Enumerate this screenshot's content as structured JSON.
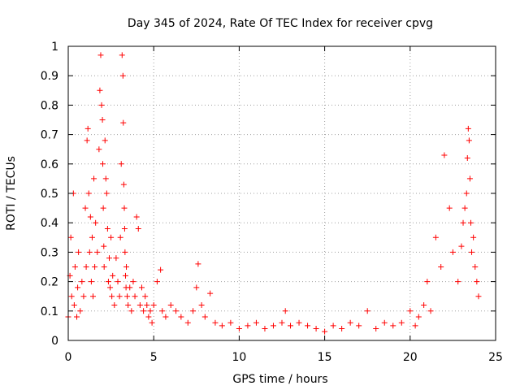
{
  "chart_data": {
    "type": "scatter",
    "title": "Day 345 of 2024, Rate Of TEC Index for receiver cpvg",
    "xlabel": "GPS time / hours",
    "ylabel": "ROTI / TECUs",
    "xlim": [
      0,
      25
    ],
    "ylim": [
      0,
      1
    ],
    "xticks": [
      0,
      5,
      10,
      15,
      20,
      25
    ],
    "yticks": [
      0,
      0.1,
      0.2,
      0.3,
      0.4,
      0.5,
      0.6,
      0.7,
      0.8,
      0.9,
      1
    ],
    "xtick_labels": [
      "0",
      "5",
      "10",
      "15",
      "20",
      "25"
    ],
    "ytick_labels": [
      "0",
      "0.1",
      "0.2",
      "0.3",
      "0.4",
      "0.5",
      "0.6",
      "0.7",
      "0.8",
      "0.9",
      "1"
    ],
    "grid": true,
    "marker": "+",
    "color": "#ff0000",
    "series": [
      {
        "name": "ROTI",
        "x": [
          0.0,
          0.1,
          0.15,
          0.2,
          0.3,
          0.35,
          0.4,
          0.5,
          0.55,
          0.6,
          0.7,
          0.8,
          0.9,
          1.0,
          1.05,
          1.1,
          1.15,
          1.2,
          1.25,
          1.3,
          1.35,
          1.4,
          1.45,
          1.5,
          1.55,
          1.6,
          1.7,
          1.8,
          1.85,
          1.9,
          1.95,
          2.0,
          2.02,
          2.05,
          2.08,
          2.1,
          2.15,
          2.2,
          2.25,
          2.3,
          2.35,
          2.4,
          2.45,
          2.5,
          2.55,
          2.6,
          2.7,
          2.8,
          2.9,
          3.0,
          3.05,
          3.1,
          3.15,
          3.2,
          3.22,
          3.25,
          3.28,
          3.3,
          3.32,
          3.35,
          3.38,
          3.4,
          3.45,
          3.5,
          3.6,
          3.7,
          3.8,
          3.9,
          4.0,
          4.1,
          4.2,
          4.3,
          4.4,
          4.5,
          4.6,
          4.7,
          4.8,
          4.9,
          5.0,
          5.2,
          5.4,
          5.5,
          5.7,
          6.0,
          6.3,
          6.6,
          7.0,
          7.3,
          7.5,
          7.6,
          7.8,
          8.0,
          8.3,
          8.6,
          9.0,
          9.5,
          10.0,
          10.5,
          11.0,
          11.5,
          12.0,
          12.5,
          12.7,
          13.0,
          13.5,
          14.0,
          14.5,
          15.0,
          15.5,
          16.0,
          16.5,
          17.0,
          17.5,
          18.0,
          18.5,
          19.0,
          19.5,
          20.0,
          20.3,
          20.5,
          20.8,
          21.0,
          21.2,
          21.5,
          21.8,
          22.0,
          22.3,
          22.5,
          22.8,
          23.0,
          23.1,
          23.2,
          23.3,
          23.35,
          23.4,
          23.45,
          23.5,
          23.55,
          23.6,
          23.7,
          23.8,
          23.9,
          24.0
        ],
        "y": [
          0.08,
          0.22,
          0.35,
          0.15,
          0.5,
          0.12,
          0.25,
          0.08,
          0.18,
          0.3,
          0.1,
          0.2,
          0.15,
          0.45,
          0.25,
          0.68,
          0.72,
          0.5,
          0.3,
          0.42,
          0.2,
          0.35,
          0.15,
          0.55,
          0.25,
          0.4,
          0.3,
          0.65,
          0.85,
          0.97,
          0.8,
          0.75,
          0.6,
          0.45,
          0.32,
          0.25,
          0.68,
          0.55,
          0.5,
          0.38,
          0.2,
          0.28,
          0.18,
          0.35,
          0.15,
          0.22,
          0.12,
          0.28,
          0.2,
          0.15,
          0.35,
          0.6,
          0.97,
          0.9,
          0.74,
          0.53,
          0.45,
          0.38,
          0.3,
          0.22,
          0.18,
          0.25,
          0.15,
          0.12,
          0.18,
          0.1,
          0.2,
          0.15,
          0.42,
          0.38,
          0.12,
          0.18,
          0.1,
          0.15,
          0.12,
          0.08,
          0.1,
          0.06,
          0.12,
          0.2,
          0.24,
          0.1,
          0.08,
          0.12,
          0.1,
          0.08,
          0.06,
          0.1,
          0.18,
          0.26,
          0.12,
          0.08,
          0.16,
          0.06,
          0.05,
          0.06,
          0.04,
          0.05,
          0.06,
          0.04,
          0.05,
          0.06,
          0.1,
          0.05,
          0.06,
          0.05,
          0.04,
          0.03,
          0.05,
          0.04,
          0.06,
          0.05,
          0.1,
          0.04,
          0.06,
          0.05,
          0.06,
          0.1,
          0.05,
          0.08,
          0.12,
          0.2,
          0.1,
          0.35,
          0.25,
          0.63,
          0.45,
          0.3,
          0.2,
          0.32,
          0.4,
          0.45,
          0.5,
          0.62,
          0.72,
          0.68,
          0.55,
          0.4,
          0.3,
          0.35,
          0.25,
          0.2,
          0.15
        ]
      }
    ]
  }
}
